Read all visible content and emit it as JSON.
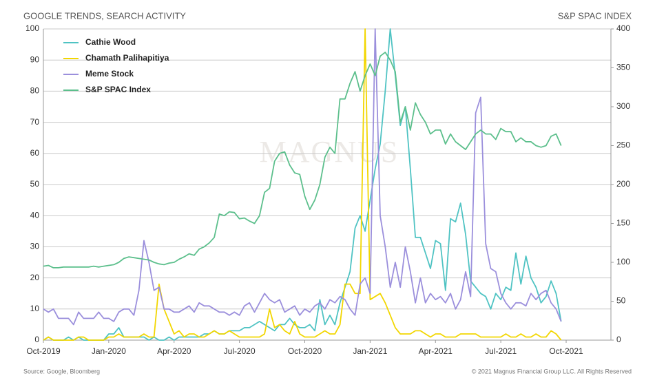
{
  "chart_data": {
    "type": "line",
    "title": "GOOGLE TRENDS, SEARCH ACTIVITY",
    "y2_title": "S&P SPAC INDEX",
    "source": "Source: Google, Bloomberg",
    "copyright": "© 2021 Magnus Financial Group LLC. All Rights Reserved",
    "watermark": "MAGNUS",
    "categories": [
      "Oct-2019",
      null,
      null,
      null,
      null,
      null,
      null,
      null,
      null,
      null,
      null,
      null,
      null,
      "Jan-2020",
      null,
      null,
      null,
      null,
      null,
      null,
      null,
      null,
      null,
      null,
      null,
      null,
      "Apr-2020",
      null,
      null,
      null,
      null,
      null,
      null,
      null,
      null,
      null,
      null,
      null,
      null,
      "Jul-2020",
      null,
      null,
      null,
      null,
      null,
      null,
      null,
      null,
      null,
      null,
      null,
      null,
      "Oct-2020",
      null,
      null,
      null,
      null,
      null,
      null,
      null,
      null,
      null,
      null,
      null,
      null,
      "Jan-2021",
      null,
      null,
      null,
      null,
      null,
      null,
      null,
      null,
      null,
      null,
      null,
      null,
      "Apr-2021",
      null,
      null,
      null,
      null,
      null,
      null,
      null,
      null,
      null,
      null,
      null,
      null,
      "Jul-2021",
      null,
      null,
      null,
      null,
      null,
      null,
      null,
      null,
      null,
      null,
      null,
      null,
      "Oct-2021"
    ],
    "ylim": [
      0,
      100
    ],
    "yticks": [
      0,
      10,
      20,
      30,
      40,
      50,
      60,
      70,
      80,
      90,
      100
    ],
    "y2lim": [
      0,
      400
    ],
    "y2ticks": [
      0,
      50,
      100,
      150,
      200,
      250,
      300,
      350,
      400
    ],
    "grid": true,
    "legend": "upper left",
    "series": [
      {
        "name": "Cathie Wood",
        "color": "#4fc3c3",
        "values": [
          0,
          1,
          0,
          0,
          0,
          1,
          0,
          1,
          0,
          0,
          0,
          0,
          0,
          2,
          2,
          4,
          1,
          1,
          1,
          1,
          1,
          0,
          1,
          0,
          0,
          1,
          0,
          1,
          1,
          1,
          1,
          1,
          2,
          2,
          3,
          2,
          2,
          3,
          3,
          3,
          4,
          4,
          5,
          6,
          5,
          4,
          3,
          5,
          5,
          7,
          5,
          4,
          4,
          5,
          3,
          13,
          5,
          8,
          5,
          12,
          17,
          22,
          36,
          40,
          35,
          45,
          55,
          63,
          80,
          100,
          85,
          69,
          75,
          55,
          33,
          33,
          28,
          23,
          32,
          31,
          16,
          39,
          38,
          44,
          34,
          19,
          17,
          15,
          14,
          10,
          15,
          13,
          17,
          16,
          28,
          18,
          27,
          20,
          17,
          12,
          14,
          19,
          15,
          6,
          null
        ]
      },
      {
        "name": "Chamath Palihapitiya",
        "color": "#f2d600",
        "values": [
          0,
          1,
          0,
          0,
          0,
          0,
          0,
          1,
          1,
          0,
          0,
          0,
          0,
          1,
          1,
          2,
          1,
          1,
          1,
          1,
          2,
          1,
          1,
          18,
          10,
          6,
          2,
          3,
          1,
          2,
          2,
          1,
          1,
          2,
          3,
          2,
          2,
          3,
          2,
          1,
          1,
          1,
          1,
          1,
          2,
          10,
          4,
          5,
          3,
          2,
          6,
          2,
          1,
          1,
          1,
          2,
          3,
          2,
          2,
          5,
          18,
          18,
          15,
          15,
          100,
          13,
          14,
          15,
          12,
          8,
          4,
          2,
          2,
          2,
          3,
          3,
          2,
          1,
          2,
          2,
          1,
          1,
          1,
          2,
          2,
          2,
          2,
          1,
          1,
          1,
          1,
          1,
          2,
          1,
          1,
          2,
          1,
          1,
          2,
          1,
          1,
          3,
          2,
          0,
          null
        ]
      },
      {
        "name": "Meme Stock",
        "color": "#9b8fdc",
        "values": [
          10,
          9,
          10,
          7,
          7,
          7,
          5,
          9,
          7,
          7,
          7,
          9,
          7,
          7,
          6,
          9,
          10,
          10,
          8,
          16,
          32,
          25,
          16,
          17,
          10,
          10,
          9,
          9,
          10,
          11,
          9,
          12,
          11,
          11,
          10,
          9,
          9,
          8,
          9,
          8,
          11,
          12,
          9,
          12,
          15,
          13,
          12,
          13,
          9,
          10,
          11,
          8,
          10,
          9,
          11,
          12,
          10,
          13,
          12,
          14,
          13,
          10,
          8,
          18,
          20,
          15,
          100,
          40,
          30,
          17,
          25,
          17,
          30,
          22,
          12,
          20,
          12,
          15,
          13,
          14,
          12,
          15,
          10,
          13,
          22,
          14,
          73,
          78,
          31,
          23,
          22,
          15,
          12,
          10,
          12,
          12,
          11,
          15,
          13,
          15,
          16,
          12,
          10,
          6,
          null
        ]
      },
      {
        "name": "S&P SPAC Index",
        "color": "#5cbf8c",
        "axis": "y2",
        "values": [
          95,
          96,
          93,
          93,
          94,
          94,
          94,
          94,
          94,
          94,
          95,
          94,
          95,
          96,
          97,
          100,
          105,
          107,
          106,
          105,
          104,
          103,
          100,
          98,
          97,
          99,
          100,
          104,
          107,
          111,
          109,
          117,
          120,
          125,
          132,
          162,
          160,
          165,
          164,
          156,
          157,
          153,
          150,
          160,
          190,
          195,
          230,
          240,
          242,
          225,
          215,
          213,
          185,
          168,
          180,
          200,
          235,
          248,
          240,
          310,
          310,
          330,
          345,
          320,
          340,
          355,
          340,
          365,
          370,
          360,
          345,
          280,
          300,
          270,
          305,
          290,
          280,
          265,
          270,
          270,
          252,
          265,
          255,
          250,
          245,
          255,
          265,
          270,
          265,
          265,
          258,
          272,
          268,
          268,
          255,
          260,
          255,
          255,
          250,
          248,
          250,
          262,
          265,
          250,
          null
        ]
      }
    ]
  }
}
